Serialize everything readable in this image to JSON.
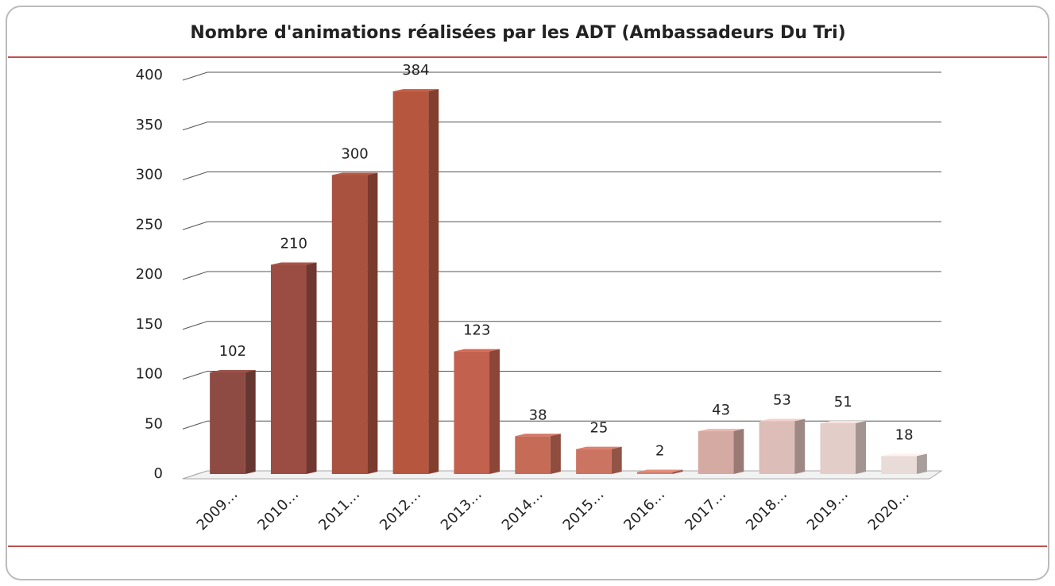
{
  "chart_data": {
    "type": "bar3d",
    "title": "Nombre d'animations réalisées par les ADT (Ambassadeurs Du Tri)",
    "categories": [
      "2009…",
      "2010…",
      "2011…",
      "2012…",
      "2013…",
      "2014…",
      "2015…",
      "2016…",
      "2017…",
      "2018…",
      "2019…",
      "2020…"
    ],
    "values": [
      102,
      210,
      300,
      384,
      123,
      38,
      25,
      2,
      43,
      53,
      51,
      18
    ],
    "colors": [
      "#8e4b43",
      "#9c4d43",
      "#a95240",
      "#b6563f",
      "#c1614e",
      "#c56b56",
      "#ca7461",
      "#cf8171",
      "#d5aaa2",
      "#dcbdb7",
      "#e2cdc9",
      "#e9dbd7"
    ],
    "ylim": [
      0,
      400
    ],
    "yticks": [
      0,
      50,
      100,
      150,
      200,
      250,
      300,
      350,
      400
    ],
    "grid": true
  }
}
